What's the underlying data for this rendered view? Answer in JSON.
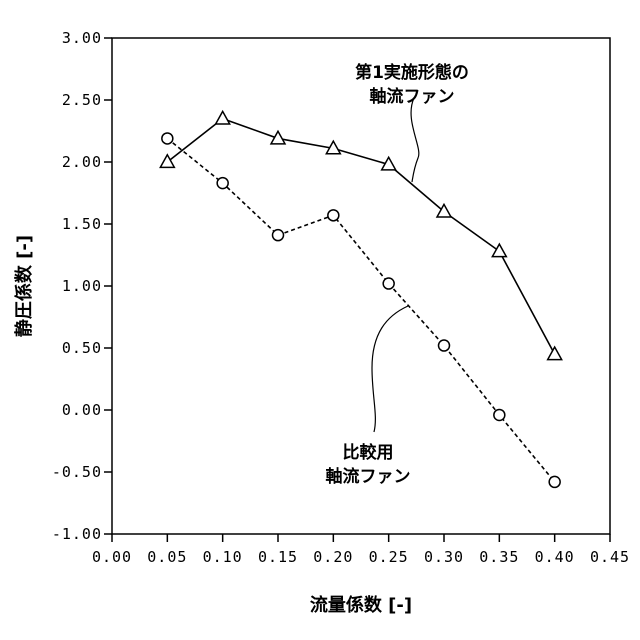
{
  "chart_data": {
    "type": "line",
    "xlabel": "流量係数 [-]",
    "ylabel": "静圧係数 [-]",
    "xlim": [
      0.0,
      0.45
    ],
    "ylim": [
      -1.0,
      3.0
    ],
    "x_ticks": [
      "0.00",
      "0.05",
      "0.10",
      "0.15",
      "0.20",
      "0.25",
      "0.30",
      "0.35",
      "0.40",
      "0.45"
    ],
    "y_ticks": [
      "-1.00",
      "-0.50",
      "0.00",
      "0.50",
      "1.00",
      "1.50",
      "2.00",
      "2.50",
      "3.00"
    ],
    "grid": false,
    "series": [
      {
        "marker": "triangle",
        "line_style": "solid",
        "x": [
          0.05,
          0.1,
          0.15,
          0.2,
          0.25,
          0.3,
          0.35,
          0.4
        ],
        "y": [
          2.0,
          2.35,
          2.19,
          2.11,
          1.98,
          1.6,
          1.28,
          0.45
        ]
      },
      {
        "marker": "circle",
        "line_style": "dashed",
        "x": [
          0.05,
          0.1,
          0.15,
          0.2,
          0.25,
          0.3,
          0.35,
          0.4
        ],
        "y": [
          2.19,
          1.83,
          1.41,
          1.57,
          1.02,
          0.52,
          -0.04,
          -0.58
        ]
      }
    ],
    "annotations": [
      {
        "lines": [
          "第1実施形態の",
          "軸流ファン"
        ],
        "series": 0
      },
      {
        "lines": [
          "比較用",
          "軸流ファン"
        ],
        "series": 1
      }
    ]
  }
}
